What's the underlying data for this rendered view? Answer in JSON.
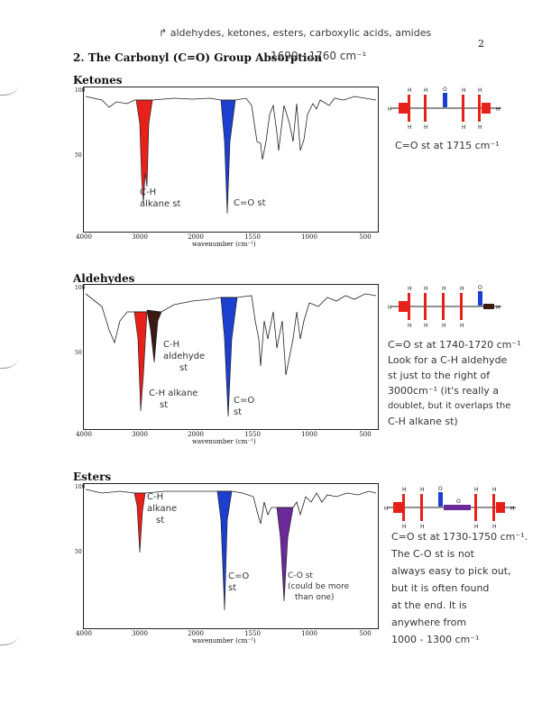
{
  "page_number": "2",
  "header_note": "aldehydes, ketones, esters, carboxylic acids, amides",
  "section_title": "2. The Carbonyl (C=O) Group Absorption",
  "range_note": "1690 - 1760 cm⁻¹",
  "axis": {
    "xlabel": "wavenumber (cm⁻¹)",
    "ylabel": "TRANSMITTANCE[%]",
    "x_ticks": [
      "4000",
      "3000",
      "2000",
      "1550",
      "1000",
      "500"
    ],
    "y_ticks": [
      "100",
      "50",
      "0"
    ]
  },
  "ketones": {
    "title": "Ketones",
    "ch_label_1": "C-H",
    "ch_label_2": "alkane st",
    "co_label": "C=O st",
    "note": "C=O st at 1715 cm⁻¹"
  },
  "aldehydes": {
    "title": "Aldehydes",
    "ch_ald_1": "C-H",
    "ch_ald_2": "aldehyde",
    "ch_ald_3": "st",
    "ch_alk_1": "C-H alkane",
    "ch_alk_2": "st",
    "co_label_1": "C=O",
    "co_label_2": "st",
    "note_lines": [
      "C=O st at 1740-1720 cm⁻¹",
      "Look for a C-H aldehyde",
      "st just to the right of",
      "3000cm⁻¹ (it's really a",
      "doublet, but it overlaps the",
      "C-H alkane st)"
    ]
  },
  "esters": {
    "title": "Esters",
    "ch_1": "C-H",
    "ch_2": "alkane",
    "ch_3": "st",
    "co_1": "C=O",
    "co_2": "st",
    "cost_1": "C-O st",
    "cost_2": "(could be more",
    "cost_3": "than one)",
    "note_lines": [
      "C=O st at 1730-1750 cm⁻¹.",
      "The C-O st is not",
      "always easy to pick out,",
      "but it is often found",
      "at the end. It is",
      "anywhere from",
      "1000 - 1300 cm⁻¹"
    ]
  },
  "colors": {
    "ch": "#e8201a",
    "co": "#1c3fd0",
    "ald": "#3a1a12",
    "co_single": "#6a2a9a"
  }
}
